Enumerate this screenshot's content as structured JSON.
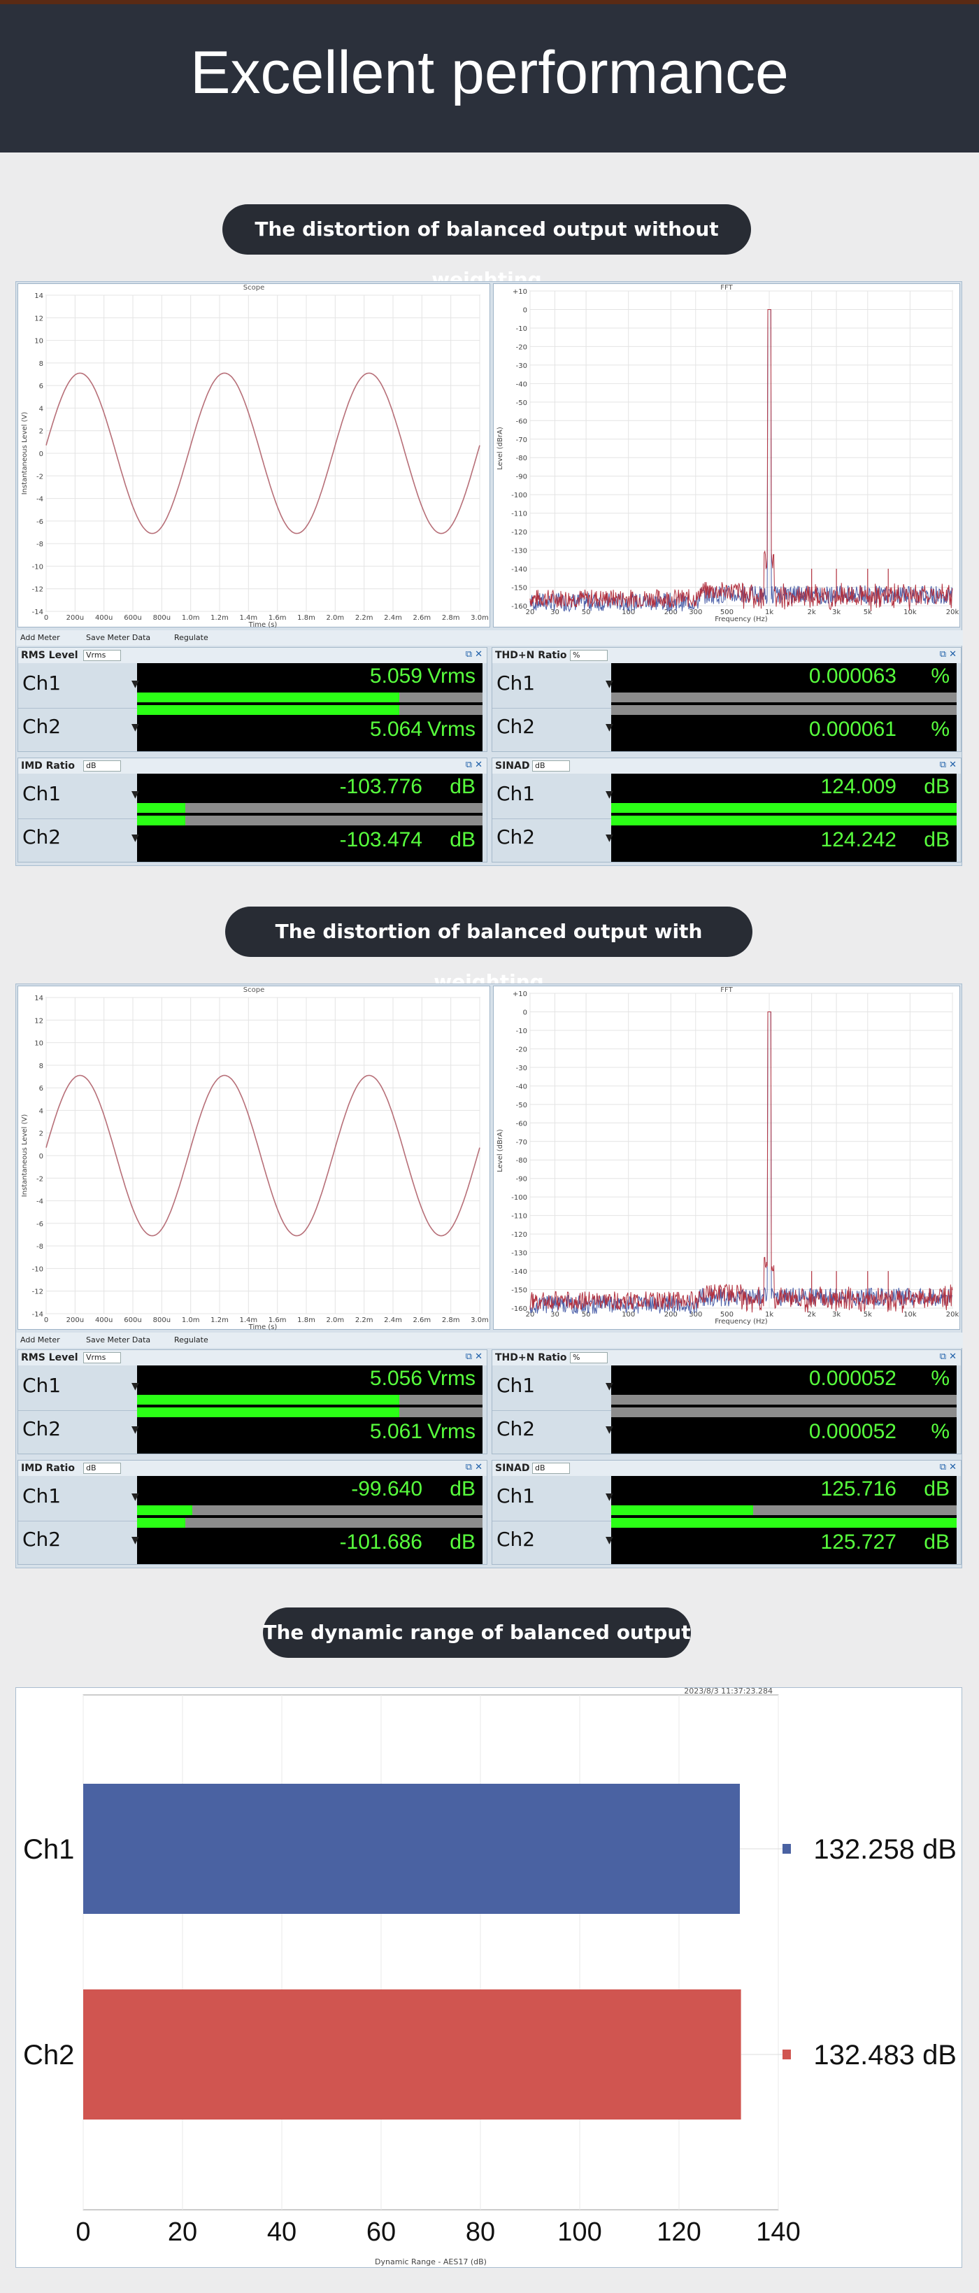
{
  "header": {
    "title": "Excellent performance"
  },
  "sections": [
    {
      "pill": "The distortion of balanced output without weighting",
      "scope_title": "Scope",
      "fft_title": "FFT",
      "scope_ylabel": "Instantaneous Level (V)",
      "scope_xlabel": "Time (s)",
      "fft_ylabel": "Level (dBrA)",
      "fft_xlabel": "Frequency (Hz)",
      "toolbar": {
        "add": "Add Meter",
        "save": "Save Meter Data",
        "regulate": "Regulate"
      },
      "meters": [
        {
          "name": "RMS Level",
          "unit": "Vrms",
          "ch1": "5.059",
          "ch2": "5.064",
          "u": "Vrms",
          "fill1": 0.76,
          "fill2": 0.76
        },
        {
          "name": "THD+N Ratio",
          "unit": "%",
          "ch1": "0.000063",
          "ch2": "0.000061",
          "u": "%",
          "fill1": 0.0,
          "fill2": 0.0
        },
        {
          "name": "IMD Ratio",
          "unit": "dB",
          "ch1": "-103.776",
          "ch2": "-103.474",
          "u": "dB",
          "fill1": 0.14,
          "fill2": 0.14
        },
        {
          "name": "SINAD",
          "unit": "dB",
          "ch1": "124.009",
          "ch2": "124.242",
          "u": "dB",
          "fill1": 1.0,
          "fill2": 1.0
        }
      ]
    },
    {
      "pill": "The distortion of balanced output with weighting",
      "scope_title": "Scope",
      "fft_title": "FFT",
      "scope_ylabel": "Instantaneous Level (V)",
      "scope_xlabel": "Time (s)",
      "fft_ylabel": "Level (dBrA)",
      "fft_xlabel": "Frequency (Hz)",
      "toolbar": {
        "add": "Add Meter",
        "save": "Save Meter Data",
        "regulate": "Regulate"
      },
      "meters": [
        {
          "name": "RMS Level",
          "unit": "Vrms",
          "ch1": "5.056",
          "ch2": "5.061",
          "u": "Vrms",
          "fill1": 0.76,
          "fill2": 0.76
        },
        {
          "name": "THD+N Ratio",
          "unit": "%",
          "ch1": "0.000052",
          "ch2": "0.000052",
          "u": "%",
          "fill1": 0.0,
          "fill2": 0.0
        },
        {
          "name": "IMD Ratio",
          "unit": "dB",
          "ch1": "-99.640",
          "ch2": "-101.686",
          "u": "dB",
          "fill1": 0.16,
          "fill2": 0.14
        },
        {
          "name": "SINAD",
          "unit": "dB",
          "ch1": "125.716",
          "ch2": "125.727",
          "u": "dB",
          "fill1": 0.41,
          "fill2": 1.0
        }
      ]
    }
  ],
  "channels": [
    "Ch1",
    "Ch2"
  ],
  "scope_ticks_y": [
    "14",
    "12",
    "10",
    "8",
    "6",
    "4",
    "2",
    "0",
    "-2",
    "-4",
    "-6",
    "-8",
    "-10",
    "-12",
    "-14"
  ],
  "scope_ticks_x": [
    "0",
    "200u",
    "400u",
    "600u",
    "800u",
    "1.0m",
    "1.2m",
    "1.4m",
    "1.6m",
    "1.8m",
    "2.0m",
    "2.2m",
    "2.4m",
    "2.6m",
    "2.8m",
    "3.0m"
  ],
  "fft_ticks_y": [
    "+10",
    "0",
    "-10",
    "-20",
    "-30",
    "-40",
    "-50",
    "-60",
    "-70",
    "-80",
    "-90",
    "-100",
    "-110",
    "-120",
    "-130",
    "-140",
    "-150",
    "-160"
  ],
  "fft_ticks_x": [
    "20",
    "30",
    "50",
    "100",
    "200",
    "300",
    "500",
    "1k",
    "2k",
    "3k",
    "5k",
    "10k",
    "20k"
  ],
  "dynamic_range": {
    "pill": "The dynamic range of balanced output",
    "timestamp": "2023/8/3 11:37:23.284",
    "xlabel": "Dynamic Range - AES17 (dB)",
    "chart_data": {
      "type": "bar",
      "orientation": "horizontal",
      "categories": [
        "Ch1",
        "Ch2"
      ],
      "values": [
        132.258,
        132.483
      ],
      "value_labels": [
        "132.258 dB",
        "132.483 dB"
      ],
      "xlabel": "Dynamic Range - AES17 (dB)",
      "xlim": [
        0,
        140
      ],
      "xticks": [
        "0",
        "20",
        "40",
        "60",
        "80",
        "100",
        "120",
        "140"
      ],
      "colors": [
        "#4a62a2",
        "#d05550"
      ],
      "grid": true
    }
  }
}
